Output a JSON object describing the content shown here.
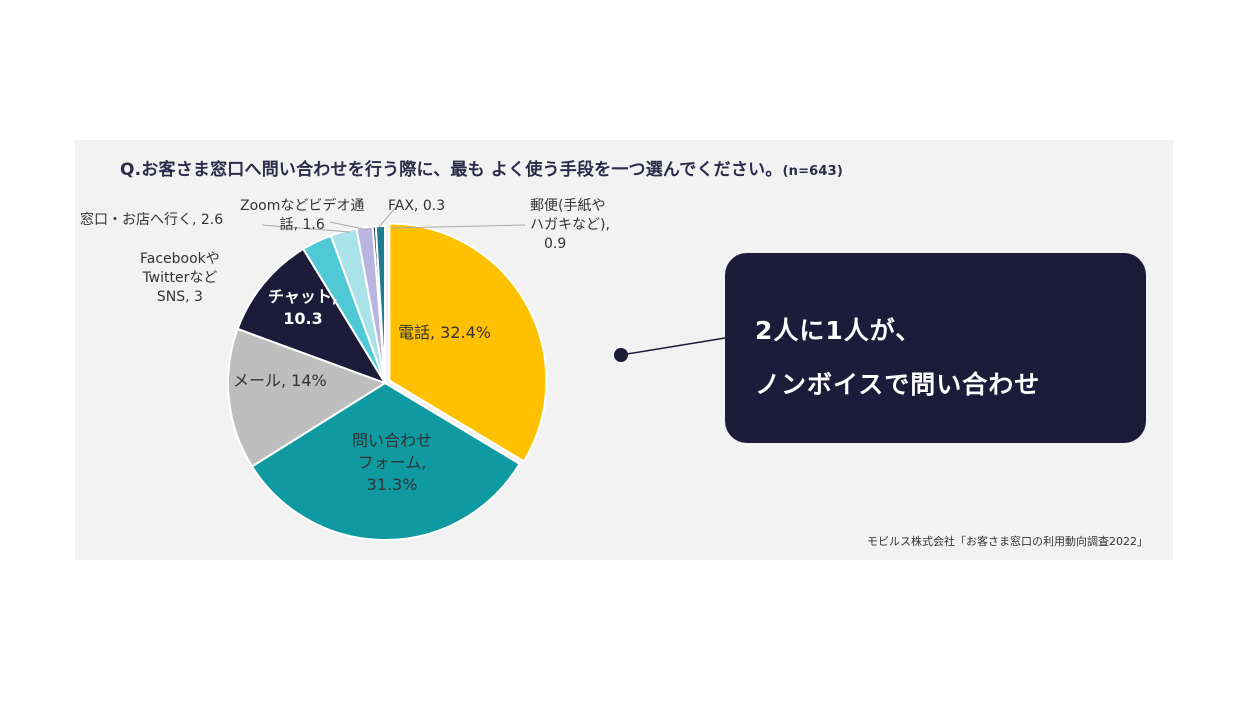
{
  "title": "Q.お客さま窓口へ問い合わせを行う際に、最も よく使う手段を一つ選んでください。",
  "title_n": "(n=643)",
  "callout": {
    "line1": "2人に1人が、",
    "line2": "ノンボイスで問い合わせ"
  },
  "source": "モビルス株式会社「お客さま窓口の利用動向調査2022」",
  "chart_data": {
    "type": "pie",
    "slices": [
      {
        "label": "電話, 32.4%",
        "value": 32.4,
        "color": "#ffc000"
      },
      {
        "label": "問い合わせ フォーム, 31.3%",
        "value": 31.3,
        "color": "#0e9aa0"
      },
      {
        "label": "メール, 14%",
        "value": 14,
        "color": "#bebebe"
      },
      {
        "label": "チャット, 10.3",
        "value": 10.3,
        "color": "#1c1c3a"
      },
      {
        "label": "Facebookや Twitterなど SNS, 3",
        "value": 3,
        "color": "#4fc9d6"
      },
      {
        "label": "窓口・お店へ行く, 2.6",
        "value": 2.6,
        "color": "#a9e3e9"
      },
      {
        "label": "Zoomなどビデオ通 話, 1.6",
        "value": 1.6,
        "color": "#b8b6e0"
      },
      {
        "label": "FAX, 0.3",
        "value": 0.3,
        "color": "#0d2c4a"
      },
      {
        "label": "郵便(手紙や ハガキなど), 0.9",
        "value": 0.9,
        "color": "#1f7b8f"
      }
    ],
    "labels": {
      "phone": [
        "電話, 32.4%"
      ],
      "form": [
        "問い合わせ",
        "フォーム,",
        "31.3%"
      ],
      "mail": [
        "メール, 14%"
      ],
      "chat": [
        "チャット,",
        "10.3"
      ],
      "sns": [
        "Facebookや",
        "Twitterなど",
        "SNS, 3"
      ],
      "store": [
        "窓口・お店へ行く, 2.6"
      ],
      "video": [
        "Zoomなどビデオ通",
        "話, 1.6"
      ],
      "fax": [
        "FAX, 0.3"
      ],
      "mail_post": [
        "郵便(手紙や",
        "ハガキなど),",
        "0.9"
      ]
    }
  }
}
